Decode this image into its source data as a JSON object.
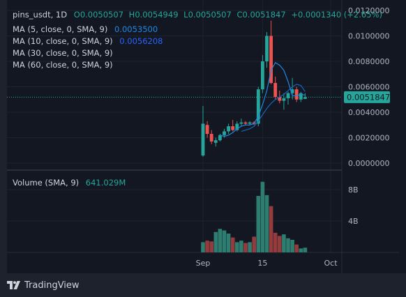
{
  "legend": {
    "symbol": "pins_usdt, 1D",
    "open": "O0.0050507",
    "high": "H0.0054949",
    "low": "L0.0050507",
    "close": "C0.0051847",
    "change": "+0.0001340 (+2.65%)",
    "ma5_label": "MA (5, close, 0, SMA, 9)",
    "ma5_value": "0.0053500",
    "ma10_label": "MA (10, close, 0, SMA, 9)",
    "ma10_value": "0.0056208",
    "ma30_label": "MA (30, close, 0, SMA, 9)",
    "ma60_label": "MA (60, close, 0, SMA, 9)",
    "volume_label": "Volume (SMA, 9)",
    "volume_value": "641.029M"
  },
  "price_axis": {
    "ticks": [
      "0.0120000",
      "0.0100000",
      "0.0080000",
      "0.0060000",
      "0.0040000",
      "0.0020000",
      "0.0000000"
    ],
    "last_price": "0.0051847"
  },
  "volume_axis": {
    "ticks": [
      "8B",
      "4B"
    ]
  },
  "time_axis": {
    "ticks": [
      "Sep",
      "15",
      "Oct"
    ]
  },
  "brand": {
    "name": "TradingView"
  },
  "colors": {
    "up": "#26a69a",
    "down": "#ef5350",
    "up_vol": "#2e7d71",
    "down_vol": "#943b3e",
    "ma5": "#1e88e5",
    "ma10": "#1565c0",
    "bg": "#131722",
    "text": "#d1d4dc"
  },
  "chart_data": [
    {
      "type": "candlestick",
      "symbol": "pins_usdt",
      "interval": "1D",
      "ylim": [
        0,
        0.0124
      ],
      "candles": [
        {
          "date": "2023-09-01",
          "o": 0.0006,
          "h": 0.0045,
          "l": 0.0005,
          "c": 0.0031
        },
        {
          "date": "2023-09-02",
          "o": 0.003,
          "h": 0.0033,
          "l": 0.002,
          "c": 0.0023
        },
        {
          "date": "2023-09-03",
          "o": 0.0023,
          "h": 0.0026,
          "l": 0.0015,
          "c": 0.0017
        },
        {
          "date": "2023-09-04",
          "o": 0.0016,
          "h": 0.002,
          "l": 0.0013,
          "c": 0.0018
        },
        {
          "date": "2023-09-05",
          "o": 0.0018,
          "h": 0.0023,
          "l": 0.0017,
          "c": 0.0022
        },
        {
          "date": "2023-09-06",
          "o": 0.0022,
          "h": 0.0027,
          "l": 0.002,
          "c": 0.0025
        },
        {
          "date": "2023-09-07",
          "o": 0.0025,
          "h": 0.0031,
          "l": 0.0023,
          "c": 0.0029
        },
        {
          "date": "2023-09-08",
          "o": 0.0029,
          "h": 0.0034,
          "l": 0.0025,
          "c": 0.0026
        },
        {
          "date": "2023-09-09",
          "o": 0.0026,
          "h": 0.0033,
          "l": 0.0025,
          "c": 0.0031
        },
        {
          "date": "2023-09-10",
          "o": 0.0031,
          "h": 0.0035,
          "l": 0.0029,
          "c": 0.0032
        },
        {
          "date": "2023-09-11",
          "o": 0.0032,
          "h": 0.0033,
          "l": 0.003,
          "c": 0.0031
        },
        {
          "date": "2023-09-12",
          "o": 0.0031,
          "h": 0.0033,
          "l": 0.003,
          "c": 0.0032
        },
        {
          "date": "2023-09-13",
          "o": 0.0032,
          "h": 0.0033,
          "l": 0.003,
          "c": 0.0031
        },
        {
          "date": "2023-09-14",
          "o": 0.0031,
          "h": 0.006,
          "l": 0.0029,
          "c": 0.0058
        },
        {
          "date": "2023-09-15",
          "o": 0.0058,
          "h": 0.0085,
          "l": 0.0055,
          "c": 0.008
        },
        {
          "date": "2023-09-16",
          "o": 0.008,
          "h": 0.0103,
          "l": 0.0075,
          "c": 0.01
        },
        {
          "date": "2023-09-17",
          "o": 0.01,
          "h": 0.0112,
          "l": 0.0062,
          "c": 0.0063
        },
        {
          "date": "2023-09-18",
          "o": 0.0063,
          "h": 0.0068,
          "l": 0.005,
          "c": 0.0052
        },
        {
          "date": "2023-09-19",
          "o": 0.0052,
          "h": 0.0057,
          "l": 0.0047,
          "c": 0.0049
        },
        {
          "date": "2023-09-20",
          "o": 0.0049,
          "h": 0.0055,
          "l": 0.0042,
          "c": 0.0051
        },
        {
          "date": "2023-09-21",
          "o": 0.0051,
          "h": 0.0056,
          "l": 0.0046,
          "c": 0.0055
        },
        {
          "date": "2023-09-22",
          "o": 0.0055,
          "h": 0.0067,
          "l": 0.005,
          "c": 0.0058
        },
        {
          "date": "2023-09-23",
          "o": 0.0058,
          "h": 0.006,
          "l": 0.0048,
          "c": 0.005
        },
        {
          "date": "2023-09-24",
          "o": 0.005,
          "h": 0.0056,
          "l": 0.0048,
          "c": 0.0055
        },
        {
          "date": "2023-09-25",
          "o": 0.0050507,
          "h": 0.0054949,
          "l": 0.0050507,
          "c": 0.0051847
        }
      ],
      "ma5": [
        null,
        null,
        null,
        null,
        0.0022,
        0.0021,
        0.0022,
        0.0024,
        0.0027,
        0.0029,
        0.003,
        0.003,
        0.0031,
        0.0037,
        0.0046,
        0.0057,
        0.0073,
        0.0079,
        0.0077,
        0.0073,
        0.0064,
        0.0053,
        0.0053,
        0.0054,
        0.00535
      ],
      "ma10": [
        null,
        null,
        null,
        null,
        null,
        null,
        null,
        null,
        null,
        0.0025,
        0.0026,
        0.0027,
        0.0029,
        0.0033,
        0.0038,
        0.0043,
        0.0047,
        0.005,
        0.0052,
        0.0054,
        0.0057,
        0.006,
        0.0062,
        0.0061,
        0.0056208
      ]
    },
    {
      "type": "bar",
      "name": "Volume",
      "ylim": [
        0,
        9.4
      ],
      "unit": "B",
      "values": [
        1.3,
        1.5,
        1.4,
        2.6,
        3.0,
        2.8,
        2.4,
        1.9,
        1.3,
        1.5,
        1.2,
        1.3,
        2.0,
        7.2,
        9.0,
        7.3,
        5.9,
        2.5,
        2.1,
        2.3,
        1.8,
        1.6,
        1.0,
        0.5,
        0.6
      ],
      "directions": [
        "up",
        "down",
        "down",
        "up",
        "up",
        "up",
        "up",
        "down",
        "up",
        "up",
        "down",
        "up",
        "down",
        "up",
        "up",
        "up",
        "down",
        "down",
        "down",
        "up",
        "up",
        "up",
        "down",
        "up",
        "up"
      ]
    }
  ]
}
